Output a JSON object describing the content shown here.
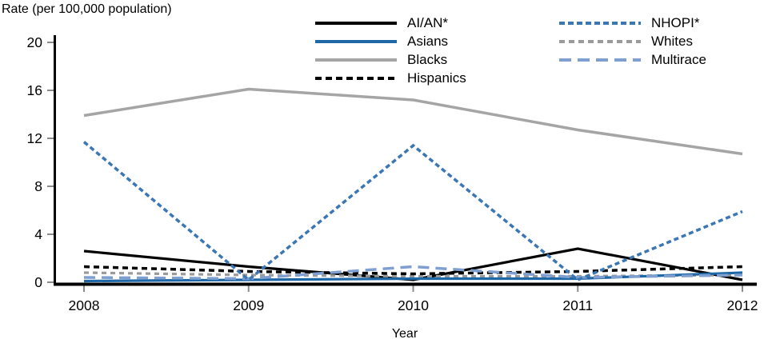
{
  "header": {
    "title": "Rate (per 100,000 population)"
  },
  "chart_data": {
    "type": "line",
    "title": "Rate (per 100,000 population)",
    "xlabel": "Year",
    "ylabel": "Rate (per 100,000 population)",
    "x": [
      2008,
      2009,
      2010,
      2011,
      2012
    ],
    "y_ticks": [
      0,
      4,
      8,
      12,
      16,
      20
    ],
    "ylim": [
      0,
      20
    ],
    "grid": false,
    "legend_position": "top-center-two-columns",
    "series": [
      {
        "name": "AI/AN*",
        "color": "#000000",
        "dash": "",
        "legend_dash": "",
        "width": 3.2,
        "values": [
          2.6,
          1.3,
          0.2,
          2.8,
          0.2
        ]
      },
      {
        "name": "Asians",
        "color": "#1e68a7",
        "dash": "",
        "legend_dash": "",
        "width": 3.2,
        "values": [
          0.1,
          0.2,
          0.3,
          0.3,
          0.8
        ]
      },
      {
        "name": "Blacks",
        "color": "#a5a5a5",
        "dash": "",
        "legend_dash": "",
        "width": 3.5,
        "values": [
          13.9,
          16.1,
          15.2,
          12.7,
          10.7
        ]
      },
      {
        "name": "Hispanics",
        "color": "#000000",
        "dash": "7 5",
        "legend_dash": "8 5",
        "width": 3.5,
        "values": [
          1.3,
          0.9,
          0.7,
          0.9,
          1.3
        ]
      },
      {
        "name": "NHOPI*",
        "color": "#3b76b5",
        "dash": "6 4",
        "legend_dash": "7 4",
        "width": 3.5,
        "values": [
          11.7,
          0.2,
          11.4,
          0.2,
          5.9
        ]
      },
      {
        "name": "Whites",
        "color": "#9a9a9a",
        "dash": "6 5",
        "legend_dash": "7 5",
        "width": 3.2,
        "values": [
          0.8,
          0.6,
          0.5,
          0.5,
          0.6
        ]
      },
      {
        "name": "Multirace",
        "color": "#7f9fd0",
        "dash": "14 8",
        "legend_dash": "15 8",
        "width": 3.5,
        "values": [
          0.4,
          0.3,
          1.3,
          0.4,
          0.6
        ]
      }
    ],
    "legend_columns": [
      [
        0,
        1,
        2,
        3
      ],
      [
        4,
        5,
        6
      ]
    ],
    "draw_order": [
      2,
      0,
      5,
      1,
      3,
      6,
      4
    ]
  },
  "colors": {
    "axis": "#000000",
    "tick": "#8c8c8c",
    "text": "#000000",
    "background": "#ffffff"
  }
}
